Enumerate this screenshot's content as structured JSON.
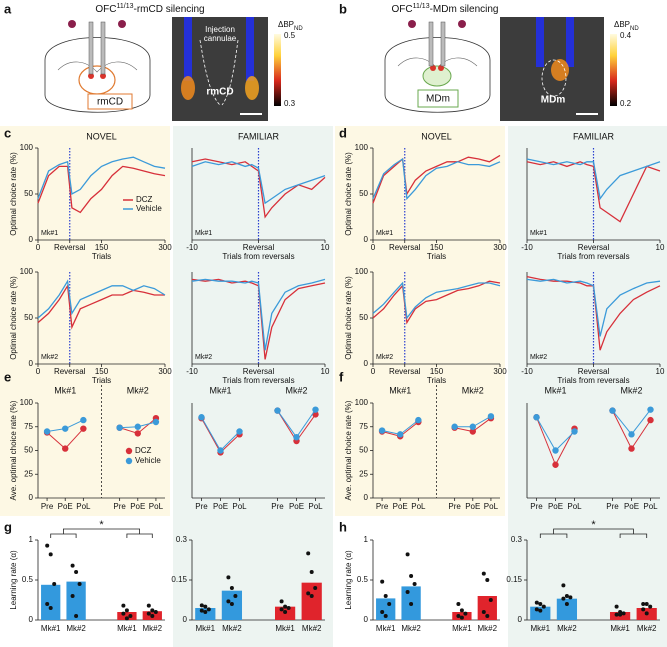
{
  "panels": {
    "labels": [
      "a",
      "b",
      "c",
      "d",
      "e",
      "f",
      "g",
      "h"
    ]
  },
  "illustrations": [
    {
      "title_main": "OFC",
      "title_sup": "11/13",
      "title_rest": "-rmCD silencing",
      "region_box": "rmCD",
      "image_note": [
        "Injection",
        "cannulae"
      ],
      "image_label": "rmCD",
      "cbar_label": "ΔBP",
      "cbar_sub": "ND",
      "cbar_max": 0.5,
      "cbar_min": 0.3
    },
    {
      "title_main": "OFC",
      "title_sup": "11/13",
      "title_rest": "-MDm silencing",
      "region_box": "MDm",
      "image_label": "MDm",
      "cbar_label": "ΔBP",
      "cbar_sub": "ND",
      "cbar_max": 0.4,
      "cbar_min": 0.2
    }
  ],
  "chart_data": [
    {
      "type": "line",
      "title": "NOVEL",
      "annotation": "Mk#1",
      "legend": true,
      "x": [
        0,
        25,
        50,
        70,
        80,
        100,
        125,
        150,
        175,
        200,
        225,
        250,
        275,
        300
      ],
      "xlim": [
        0,
        300
      ],
      "xticks": [
        0,
        {
          "value": 75,
          "label": "Reversal"
        },
        150,
        300
      ],
      "xlabel": "Trials",
      "ylim": [
        0,
        100
      ],
      "yticks": [
        0,
        50,
        100
      ],
      "ylabel": "Optimal choice rate (%)",
      "series": [
        {
          "name": "DCZ",
          "color": "#d7303a",
          "values": [
            40,
            70,
            80,
            80,
            35,
            30,
            45,
            55,
            70,
            80,
            78,
            75,
            72,
            70
          ]
        },
        {
          "name": "Vehicle",
          "color": "#3b9ad9",
          "values": [
            45,
            75,
            82,
            85,
            50,
            55,
            70,
            80,
            85,
            88,
            90,
            85,
            80,
            78
          ]
        }
      ]
    },
    {
      "type": "line",
      "title": "FAMILIAR",
      "annotation": "Mk#1",
      "legend": false,
      "x": [
        -10,
        -8,
        -6,
        -4,
        -2,
        -1,
        0,
        1,
        2,
        4,
        6,
        8,
        10
      ],
      "xlim": [
        -10,
        10
      ],
      "xticks": [
        -10,
        {
          "value": 0,
          "label": "Reversal"
        },
        10
      ],
      "xlabel": "Trials from reversals",
      "ylim": [
        0,
        100
      ],
      "series": [
        {
          "name": "DCZ",
          "color": "#d7303a",
          "values": [
            85,
            88,
            85,
            82,
            85,
            80,
            75,
            25,
            35,
            50,
            60,
            55,
            68
          ]
        },
        {
          "name": "Vehicle",
          "color": "#3b9ad9",
          "values": [
            80,
            85,
            82,
            85,
            80,
            82,
            78,
            40,
            45,
            55,
            60,
            65,
            70
          ]
        }
      ]
    },
    {
      "type": "line",
      "annotation": "Mk#2",
      "legend": false,
      "x": [
        0,
        25,
        50,
        70,
        80,
        100,
        125,
        150,
        175,
        200,
        225,
        250,
        275,
        300
      ],
      "xlim": [
        0,
        300
      ],
      "xticks": [
        0,
        {
          "value": 75,
          "label": "Reversal"
        },
        150,
        300
      ],
      "xlabel": "Trials",
      "ylim": [
        0,
        100
      ],
      "yticks": [
        0,
        50,
        100
      ],
      "ylabel": "Optimal choice rate (%)",
      "series": [
        {
          "name": "DCZ",
          "color": "#d7303a",
          "values": [
            45,
            55,
            70,
            85,
            40,
            60,
            65,
            70,
            75,
            75,
            80,
            78,
            75,
            75
          ]
        },
        {
          "name": "Vehicle",
          "color": "#3b9ad9",
          "values": [
            50,
            60,
            75,
            90,
            55,
            70,
            75,
            80,
            85,
            85,
            80,
            85,
            82,
            75
          ]
        }
      ]
    },
    {
      "type": "line",
      "annotation": "Mk#2",
      "legend": false,
      "x": [
        -10,
        -8,
        -6,
        -4,
        -2,
        -1,
        0,
        1,
        2,
        4,
        6,
        8,
        10
      ],
      "xlim": [
        -10,
        10
      ],
      "xticks": [
        -10,
        {
          "value": 0,
          "label": "Reversal"
        },
        10
      ],
      "xlabel": "Trials from reversals",
      "ylim": [
        0,
        100
      ],
      "series": [
        {
          "name": "DCZ",
          "color": "#d7303a",
          "values": [
            92,
            90,
            92,
            88,
            90,
            88,
            85,
            5,
            40,
            70,
            82,
            85,
            88
          ]
        },
        {
          "name": "Vehicle",
          "color": "#3b9ad9",
          "values": [
            90,
            92,
            90,
            90,
            88,
            90,
            88,
            15,
            55,
            78,
            85,
            88,
            92
          ]
        }
      ]
    },
    {
      "type": "line",
      "title": "NOVEL",
      "annotation": "Mk#1",
      "legend": false,
      "x": [
        0,
        25,
        50,
        70,
        80,
        100,
        125,
        150,
        175,
        200,
        225,
        250,
        275,
        300
      ],
      "xlim": [
        0,
        300
      ],
      "xticks": [
        0,
        {
          "value": 75,
          "label": "Reversal"
        },
        150,
        300
      ],
      "xlabel": "Trials",
      "ylim": [
        0,
        100
      ],
      "yticks": [
        0,
        50,
        100
      ],
      "ylabel": "Optimal choice rate (%)",
      "series": [
        {
          "name": "DCZ",
          "color": "#d7303a",
          "values": [
            40,
            70,
            80,
            88,
            50,
            65,
            75,
            80,
            85,
            85,
            90,
            88,
            85,
            92
          ]
        },
        {
          "name": "Vehicle",
          "color": "#3b9ad9",
          "values": [
            45,
            72,
            82,
            88,
            45,
            55,
            70,
            78,
            80,
            85,
            82,
            82,
            80,
            85
          ]
        }
      ]
    },
    {
      "type": "line",
      "title": "FAMILIAR",
      "annotation": "Mk#1",
      "legend": false,
      "x": [
        -10,
        -8,
        -6,
        -4,
        -2,
        -1,
        0,
        1,
        2,
        4,
        6,
        8,
        10
      ],
      "xlim": [
        -10,
        10
      ],
      "xticks": [
        -10,
        {
          "value": 0,
          "label": "Reversal"
        },
        10
      ],
      "xlabel": "Trials from reversals",
      "ylim": [
        0,
        100
      ],
      "series": [
        {
          "name": "DCZ",
          "color": "#d7303a",
          "values": [
            85,
            82,
            85,
            80,
            85,
            82,
            80,
            35,
            30,
            20,
            50,
            80,
            75
          ]
        },
        {
          "name": "Vehicle",
          "color": "#3b9ad9",
          "values": [
            88,
            85,
            82,
            85,
            82,
            85,
            85,
            45,
            55,
            70,
            75,
            80,
            85
          ]
        }
      ]
    },
    {
      "type": "line",
      "annotation": "Mk#2",
      "legend": false,
      "x": [
        0,
        25,
        50,
        70,
        80,
        100,
        125,
        150,
        175,
        200,
        225,
        250,
        275,
        300
      ],
      "xlim": [
        0,
        300
      ],
      "xticks": [
        0,
        {
          "value": 75,
          "label": "Reversal"
        },
        150,
        300
      ],
      "xlabel": "Trials",
      "ylim": [
        0,
        100
      ],
      "yticks": [
        0,
        50,
        100
      ],
      "ylabel": "Optimal choice rate (%)",
      "series": [
        {
          "name": "DCZ",
          "color": "#d7303a",
          "values": [
            50,
            60,
            75,
            85,
            45,
            60,
            68,
            70,
            75,
            80,
            82,
            85,
            90,
            88
          ]
        },
        {
          "name": "Vehicle",
          "color": "#3b9ad9",
          "values": [
            55,
            65,
            78,
            88,
            50,
            62,
            72,
            78,
            80,
            82,
            85,
            88,
            88,
            85
          ]
        }
      ]
    },
    {
      "type": "line",
      "annotation": "Mk#2",
      "legend": false,
      "x": [
        -10,
        -8,
        -6,
        -4,
        -2,
        -1,
        0,
        1,
        2,
        4,
        6,
        8,
        10
      ],
      "xlim": [
        -10,
        10
      ],
      "xticks": [
        -10,
        {
          "value": 0,
          "label": "Reversal"
        },
        10
      ],
      "xlabel": "Trials from reversals",
      "ylim": [
        0,
        100
      ],
      "series": [
        {
          "name": "DCZ",
          "color": "#d7303a",
          "values": [
            95,
            92,
            90,
            90,
            88,
            85,
            85,
            15,
            35,
            55,
            70,
            78,
            85
          ]
        },
        {
          "name": "Vehicle",
          "color": "#3b9ad9",
          "values": [
            92,
            90,
            92,
            88,
            90,
            88,
            85,
            30,
            60,
            75,
            82,
            88,
            90
          ]
        }
      ]
    },
    {
      "type": "dot",
      "groups": [
        "Mk#1",
        "Mk#2"
      ],
      "divider": true,
      "legend": true,
      "categories": [
        "Pre",
        "PoE",
        "PoL",
        "Pre",
        "PoE",
        "PoL"
      ],
      "ylim": [
        0,
        100
      ],
      "yticks": [
        0,
        25,
        50,
        75,
        100
      ],
      "ylabel": "Ave. optimal choice rate (%)",
      "series": [
        {
          "name": "DCZ",
          "color": "#d7303a",
          "values": [
            69,
            52,
            73,
            74,
            68,
            84
          ]
        },
        {
          "name": "Vehicle",
          "color": "#3b9ad9",
          "values": [
            70,
            73,
            82,
            74,
            75,
            80
          ]
        }
      ]
    },
    {
      "type": "dot",
      "groups": [
        "Mk#1",
        "Mk#2"
      ],
      "divider": false,
      "legend": false,
      "categories": [
        "Pre",
        "PoE",
        "PoL",
        "Pre",
        "PoE",
        "PoL"
      ],
      "ylim": [
        0,
        100
      ],
      "series": [
        {
          "name": "DCZ",
          "color": "#d7303a",
          "values": [
            84,
            48,
            67,
            92,
            60,
            88
          ]
        },
        {
          "name": "Vehicle",
          "color": "#3b9ad9",
          "values": [
            85,
            50,
            70,
            92,
            64,
            93
          ]
        }
      ]
    },
    {
      "type": "dot",
      "groups": [
        "Mk#1",
        "Mk#2"
      ],
      "divider": true,
      "legend": false,
      "categories": [
        "Pre",
        "PoE",
        "PoL",
        "Pre",
        "PoE",
        "PoL"
      ],
      "ylim": [
        0,
        100
      ],
      "yticks": [
        0,
        25,
        50,
        75,
        100
      ],
      "ylabel": "Ave. optimal choice rate (%)",
      "series": [
        {
          "name": "DCZ",
          "color": "#d7303a",
          "values": [
            70,
            65,
            80,
            74,
            70,
            84
          ]
        },
        {
          "name": "Vehicle",
          "color": "#3b9ad9",
          "values": [
            71,
            67,
            82,
            75,
            75,
            86
          ]
        }
      ]
    },
    {
      "type": "dot",
      "groups": [
        "Mk#1",
        "Mk#2"
      ],
      "divider": false,
      "legend": false,
      "categories": [
        "Pre",
        "PoE",
        "PoL",
        "Pre",
        "PoE",
        "PoL"
      ],
      "ylim": [
        0,
        100
      ],
      "series": [
        {
          "name": "DCZ",
          "color": "#d7303a",
          "values": [
            85,
            35,
            73,
            92,
            52,
            82
          ]
        },
        {
          "name": "Vehicle",
          "color": "#3b9ad9",
          "values": [
            85,
            50,
            70,
            92,
            67,
            93
          ]
        }
      ]
    },
    {
      "type": "bar",
      "categories": [
        "Mk#1",
        "Mk#2",
        "Mk#1",
        "Mk#2"
      ],
      "colors": [
        "#3399dd",
        "#3399dd",
        "#e0242c",
        "#e0242c"
      ],
      "values": [
        0.44,
        0.48,
        0.1,
        0.11
      ],
      "points": [
        [
          0.93,
          0.82,
          0.45,
          0.2,
          0.15
        ],
        [
          0.68,
          0.6,
          0.45,
          0.3,
          0.05
        ],
        [
          0.18,
          0.12,
          0.05,
          0.08,
          0.02
        ],
        [
          0.18,
          0.12,
          0.1,
          0.08,
          0.05
        ]
      ],
      "ylim": [
        0,
        1
      ],
      "yticks": [
        0,
        0.5,
        1
      ],
      "ylabel": "Learning rate (α)",
      "significance": "*"
    },
    {
      "type": "bar",
      "categories": [
        "Mk#1",
        "Mk#2",
        "Mk#1",
        "Mk#2"
      ],
      "colors": [
        "#3399dd",
        "#3399dd",
        "#e0242c",
        "#e0242c"
      ],
      "values": [
        0.045,
        0.11,
        0.05,
        0.14
      ],
      "points": [
        [
          0.055,
          0.05,
          0.04,
          0.035,
          0.03
        ],
        [
          0.16,
          0.12,
          0.09,
          0.07,
          0.06
        ],
        [
          0.07,
          0.05,
          0.045,
          0.04,
          0.03
        ],
        [
          0.25,
          0.18,
          0.12,
          0.1,
          0.09
        ]
      ],
      "ylim": [
        0,
        0.3
      ],
      "yticks": [
        0,
        0.15,
        0.3
      ]
    },
    {
      "type": "bar",
      "categories": [
        "Mk#1",
        "Mk#2",
        "Mk#1",
        "Mk#2"
      ],
      "colors": [
        "#3399dd",
        "#3399dd",
        "#e0242c",
        "#e0242c"
      ],
      "values": [
        0.27,
        0.42,
        0.1,
        0.3
      ],
      "points": [
        [
          0.48,
          0.3,
          0.2,
          0.1,
          0.05
        ],
        [
          0.82,
          0.55,
          0.45,
          0.35,
          0.2
        ],
        [
          0.2,
          0.12,
          0.08,
          0.05,
          0.03
        ],
        [
          0.58,
          0.5,
          0.25,
          0.1,
          0.05
        ]
      ],
      "ylim": [
        0,
        1
      ],
      "yticks": [
        0,
        0.5,
        1
      ],
      "ylabel": "Learning rate (α)"
    },
    {
      "type": "bar",
      "categories": [
        "Mk#1",
        "Mk#2",
        "Mk#1",
        "Mk#2"
      ],
      "colors": [
        "#3399dd",
        "#3399dd",
        "#e0242c",
        "#e0242c"
      ],
      "values": [
        0.05,
        0.08,
        0.03,
        0.045
      ],
      "points": [
        [
          0.065,
          0.06,
          0.05,
          0.04,
          0.035
        ],
        [
          0.13,
          0.09,
          0.085,
          0.08,
          0.06
        ],
        [
          0.05,
          0.03,
          0.025,
          0.02,
          0.02
        ],
        [
          0.06,
          0.06,
          0.05,
          0.04,
          0.025
        ]
      ],
      "ylim": [
        0,
        0.3
      ],
      "yticks": [
        0,
        0.15,
        0.3
      ],
      "significance": "*"
    }
  ]
}
